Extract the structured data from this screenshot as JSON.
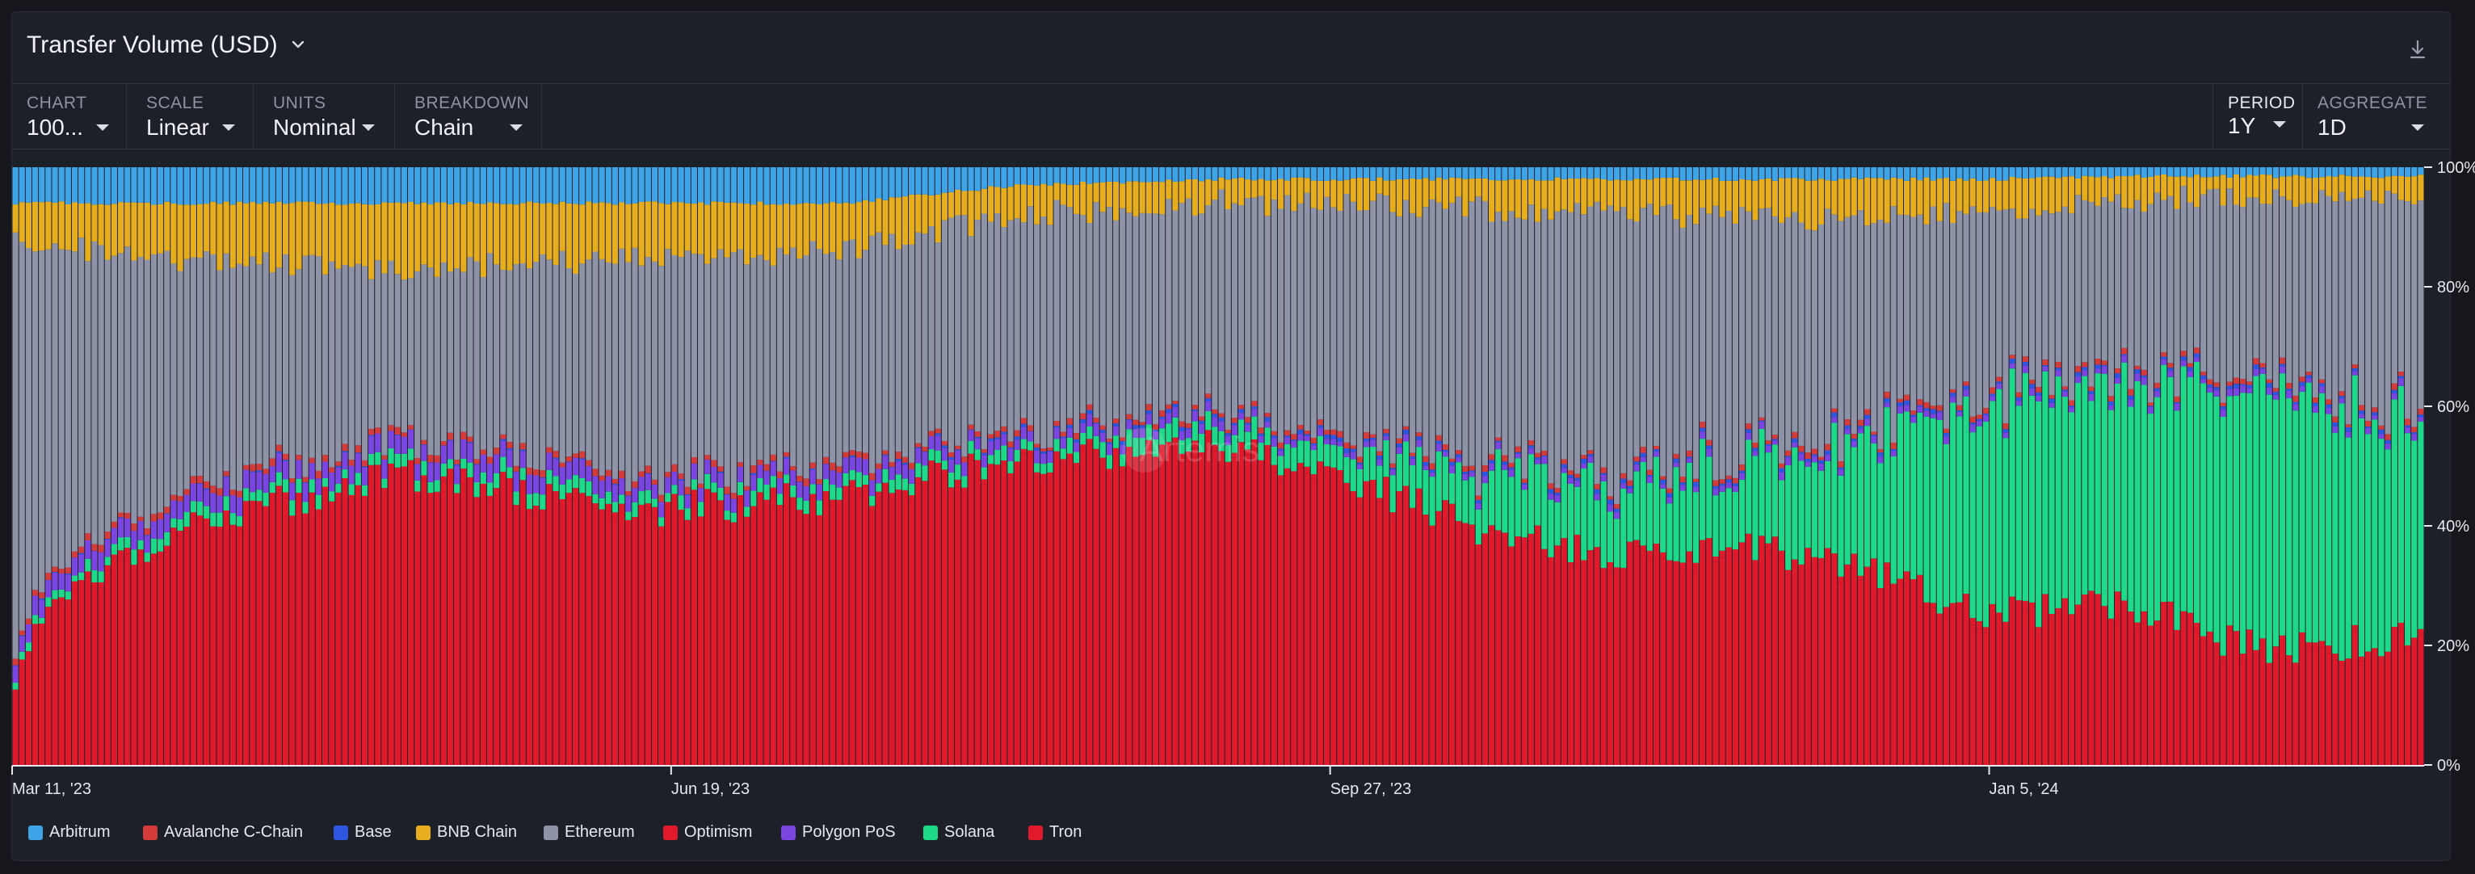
{
  "header": {
    "title": "Transfer Volume (USD)"
  },
  "controls": [
    {
      "label": "CHART",
      "value": "100..."
    },
    {
      "label": "SCALE",
      "value": "Linear"
    },
    {
      "label": "UNITS",
      "value": "Nominal"
    },
    {
      "label": "BREAKDOWN",
      "value": "Chain"
    },
    {
      "label": "PERIOD",
      "value": "1Y"
    },
    {
      "label": "AGGREGATE",
      "value": "1D"
    }
  ],
  "watermark": "Artemis",
  "colors": {
    "Arbitrum": "#3fa3e8",
    "Avalanche C-Chain": "#d43b3b",
    "Base": "#2f56e0",
    "BNB Chain": "#e6ae1f",
    "Ethereum": "#8e93a8",
    "Optimism": "#e01a2b",
    "Polygon PoS": "#7a45e0",
    "Solana": "#1fd98a",
    "Tron": "#e01a2b"
  },
  "chart_data": {
    "type": "bar",
    "stacked": "percent",
    "aggregate": "1D",
    "x_start": "2023-03-11",
    "x_end": "2024-03-10",
    "xticks": [
      "Mar 11, '23",
      "Jun 19, '23",
      "Sep 27, '23",
      "Jan 5, '24"
    ],
    "yticks": [
      "100%",
      "80%",
      "60%",
      "40%",
      "20%",
      "0%"
    ],
    "ylim": [
      0,
      100
    ],
    "series_order": [
      "Tron",
      "Optimism",
      "Solana",
      "Polygon PoS",
      "Base",
      "Avalanche C-Chain",
      "Ethereum",
      "BNB Chain",
      "Arbitrum"
    ],
    "legend": [
      "Arbitrum",
      "Avalanche C-Chain",
      "Base",
      "BNB Chain",
      "Ethereum",
      "Optimism",
      "Polygon PoS",
      "Solana",
      "Tron"
    ],
    "legend_position": "bottom",
    "keyframes": {
      "dates": [
        "2023-03-11",
        "2023-03-14",
        "2023-03-25",
        "2023-04-10",
        "2023-05-10",
        "2023-06-01",
        "2023-06-19",
        "2023-07-15",
        "2023-08-10",
        "2023-09-10",
        "2023-09-27",
        "2023-10-20",
        "2023-11-10",
        "2023-12-01",
        "2023-12-15",
        "2024-01-05",
        "2024-01-25",
        "2024-02-15",
        "2024-03-01",
        "2024-03-10"
      ],
      "Tron": [
        11,
        24,
        33,
        40,
        48,
        43,
        42,
        44,
        50,
        52,
        48,
        38,
        34,
        36,
        32,
        24,
        26,
        18,
        20,
        20
      ],
      "Optimism": [
        0.8,
        1,
        1,
        1,
        1,
        1,
        1,
        1,
        1,
        1,
        1,
        1,
        1,
        1,
        1,
        1,
        1,
        1,
        1,
        1
      ],
      "Solana": [
        1,
        1,
        2,
        2,
        2,
        2,
        2,
        2,
        2,
        3,
        4,
        10,
        12,
        14,
        20,
        34,
        36,
        44,
        38,
        36
      ],
      "Polygon PoS": [
        2.5,
        3,
        3,
        3,
        3,
        3,
        2.5,
        2.5,
        2,
        1.5,
        1,
        1,
        1,
        1,
        1,
        1,
        1,
        1,
        1,
        1
      ],
      "Base": [
        0,
        0,
        0,
        0,
        0,
        0,
        0,
        0,
        0.3,
        0.5,
        0.5,
        0.5,
        0.5,
        0.5,
        0.5,
        0.5,
        0.5,
        0.5,
        0.5,
        0.5
      ],
      "Avalanche C-Chain": [
        1,
        1,
        1,
        1,
        1,
        1,
        1,
        1,
        0.8,
        0.8,
        0.8,
        0.8,
        0.8,
        0.8,
        0.8,
        0.8,
        0.8,
        0.8,
        0.8,
        0.8
      ],
      "BNB Chain": [
        6,
        7,
        8,
        10,
        11,
        10,
        9,
        8,
        5,
        4,
        4,
        5,
        6,
        6,
        7,
        5,
        4,
        3,
        4,
        4
      ],
      "Arbitrum": [
        6,
        6,
        6,
        6,
        6,
        6,
        6,
        6,
        3,
        2,
        2,
        2,
        2,
        2,
        2,
        2,
        1.5,
        1.5,
        1.5,
        1.5
      ]
    },
    "note_ethereum": "remainder to 100%"
  },
  "legend_items": [
    "Arbitrum",
    "Avalanche C-Chain",
    "Base",
    "BNB Chain",
    "Ethereum",
    "Optimism",
    "Polygon PoS",
    "Solana",
    "Tron"
  ]
}
